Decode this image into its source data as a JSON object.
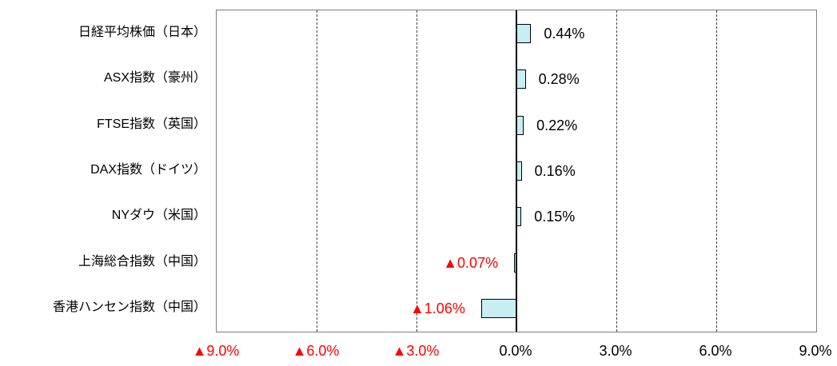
{
  "chart_data": {
    "type": "bar",
    "orientation": "horizontal",
    "title": "",
    "categories": [
      "日経平均株価（日本）",
      "ASX指数（豪州）",
      "FTSE指数（英国）",
      "DAX指数（ドイツ）",
      "NYダウ（米国）",
      "上海総合指数（中国）",
      "香港ハンセン指数（中国）"
    ],
    "values": [
      0.44,
      0.28,
      0.22,
      0.16,
      0.15,
      -0.07,
      -1.06
    ],
    "value_labels": [
      "0.44%",
      "0.28%",
      "0.22%",
      "0.16%",
      "0.15%",
      "▲0.07%",
      "▲1.06%"
    ],
    "xlim": [
      -9,
      9
    ],
    "grid_x": [
      -6,
      -3,
      3,
      6
    ],
    "x_ticks": [
      {
        "label": "▲9.0%",
        "x": -9,
        "negative": true
      },
      {
        "label": "▲6.0%",
        "x": -6,
        "negative": true
      },
      {
        "label": "▲3.0%",
        "x": -3,
        "negative": true
      },
      {
        "label": "0.0%",
        "x": 0,
        "negative": false
      },
      {
        "label": "3.0%",
        "x": 3,
        "negative": false
      },
      {
        "label": "6.0%",
        "x": 6,
        "negative": false
      },
      {
        "label": "9.0%",
        "x": 9,
        "negative": false
      }
    ],
    "grid": "dashed-vertical",
    "legend": "none"
  },
  "colors": {
    "bar_fill": "#C8EEF3",
    "bar_border": "#000000",
    "positive_text": "#000000",
    "negative_text": "#FF0000",
    "plot_border": "#7F7F7F",
    "gridline": "#404040",
    "zero_line": "#000000",
    "background": "#FFFFFF"
  }
}
